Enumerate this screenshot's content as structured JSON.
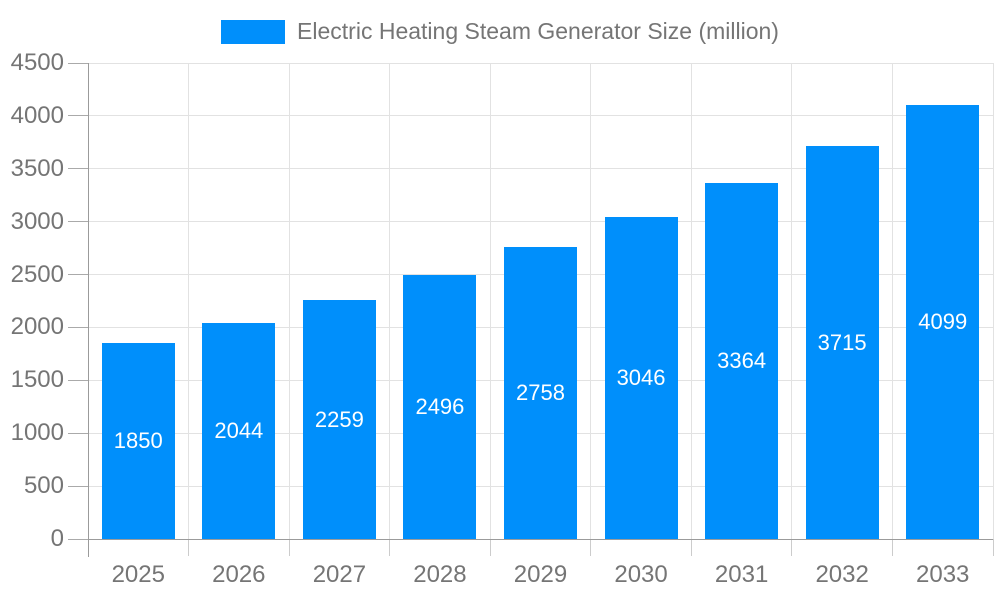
{
  "chart_data": {
    "type": "bar",
    "title": "Electric Heating Steam Generator Size (million)",
    "categories": [
      "2025",
      "2026",
      "2027",
      "2028",
      "2029",
      "2030",
      "2031",
      "2032",
      "2033"
    ],
    "values": [
      1850,
      2044,
      2259,
      2496,
      2758,
      3046,
      3364,
      3715,
      4099
    ],
    "series_name": "Electric Heating Steam Generator Size (million)",
    "xlabel": "",
    "ylabel": "",
    "ylim": [
      0,
      4500
    ],
    "yticks": [
      0,
      500,
      1000,
      1500,
      2000,
      2500,
      3000,
      3500,
      4000,
      4500
    ],
    "grid": "on",
    "legend_position": "top",
    "value_labels": "inside-center"
  },
  "colors": {
    "bar": "#008FFB",
    "grid": "#e2e2e2",
    "axis_line": "#9b9b9b",
    "tick_y": "#aaaaaa",
    "tick_x": "#cccccc",
    "axis_label": "#757575",
    "value_label": "#ffffff"
  }
}
